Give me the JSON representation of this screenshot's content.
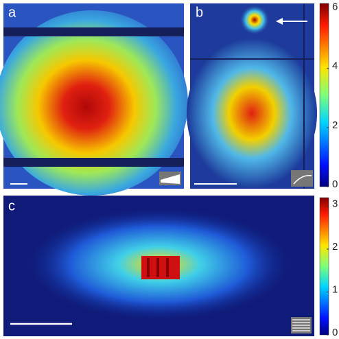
{
  "panels": [
    {
      "label": "a"
    },
    {
      "label": "b"
    },
    {
      "label": "c"
    }
  ],
  "colorbars": [
    {
      "lim": [
        0,
        6.2
      ],
      "ticks": [
        0,
        2,
        4,
        6
      ]
    },
    {
      "lim": [
        0,
        3.2
      ],
      "ticks": [
        0,
        1,
        2,
        3
      ]
    }
  ]
}
